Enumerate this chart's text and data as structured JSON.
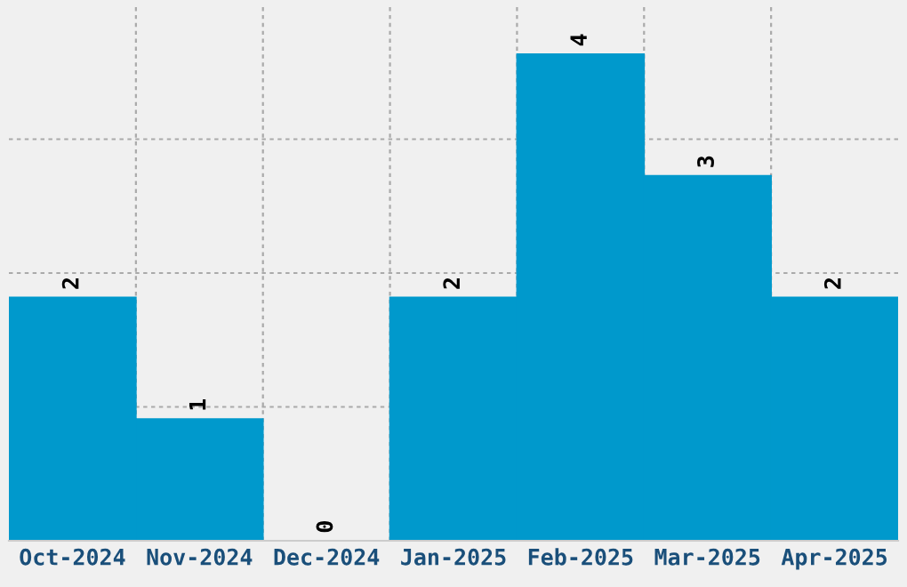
{
  "chart_data": {
    "type": "bar",
    "categories": [
      "Oct-2024",
      "Nov-2024",
      "Dec-2024",
      "Jan-2025",
      "Feb-2025",
      "Mar-2025",
      "Apr-2025"
    ],
    "values": [
      2,
      1,
      0,
      2,
      4,
      3,
      2
    ],
    "color": "#0099cc",
    "ylim": [
      0,
      4.4
    ],
    "yticks": [
      {
        "value": 1.1,
        "label": null
      },
      {
        "value": 2.2,
        "label": null
      },
      {
        "value": 3.3,
        "label": null
      }
    ],
    "tick_labels": "x",
    "grid": true,
    "data_labels": true
  }
}
